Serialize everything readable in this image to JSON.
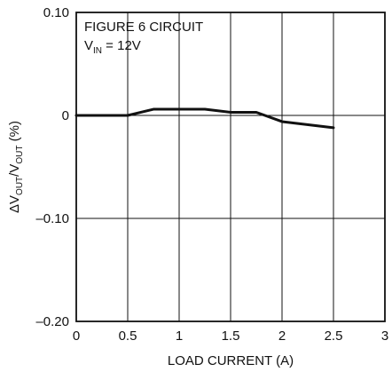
{
  "chart_data": {
    "type": "line",
    "x": [
      0,
      0.5,
      0.75,
      1.0,
      1.25,
      1.5,
      1.75,
      2.0,
      2.5
    ],
    "series": [
      {
        "values": [
          0,
          0,
          0.006,
          0.006,
          0.006,
          0.003,
          0.003,
          -0.006,
          -0.012
        ]
      }
    ],
    "xlabel": "LOAD CURRENT (A)",
    "ylabel_prefix": "ΔV",
    "ylabel_sub1": "OUT",
    "ylabel_mid": "/V",
    "ylabel_sub2": "OUT",
    "ylabel_suffix": " (%)",
    "xlim": [
      0,
      3
    ],
    "ylim": [
      -0.2,
      0.1
    ],
    "x_ticks": [
      "0",
      "0.5",
      "1",
      "1.5",
      "2",
      "2.5",
      "3"
    ],
    "y_ticks": [
      "0.10",
      "0",
      "–0.10",
      "–0.20"
    ],
    "y_tick_values": [
      0.1,
      0,
      -0.1,
      -0.2
    ],
    "annotation_line1": "FIGURE 6 CIRCUIT",
    "annotation_line2_prefix": "V",
    "annotation_line2_sub": "IN",
    "annotation_line2_suffix": " = 12V",
    "grid": true,
    "line_color": "#111111",
    "grid_color": "#111111"
  }
}
